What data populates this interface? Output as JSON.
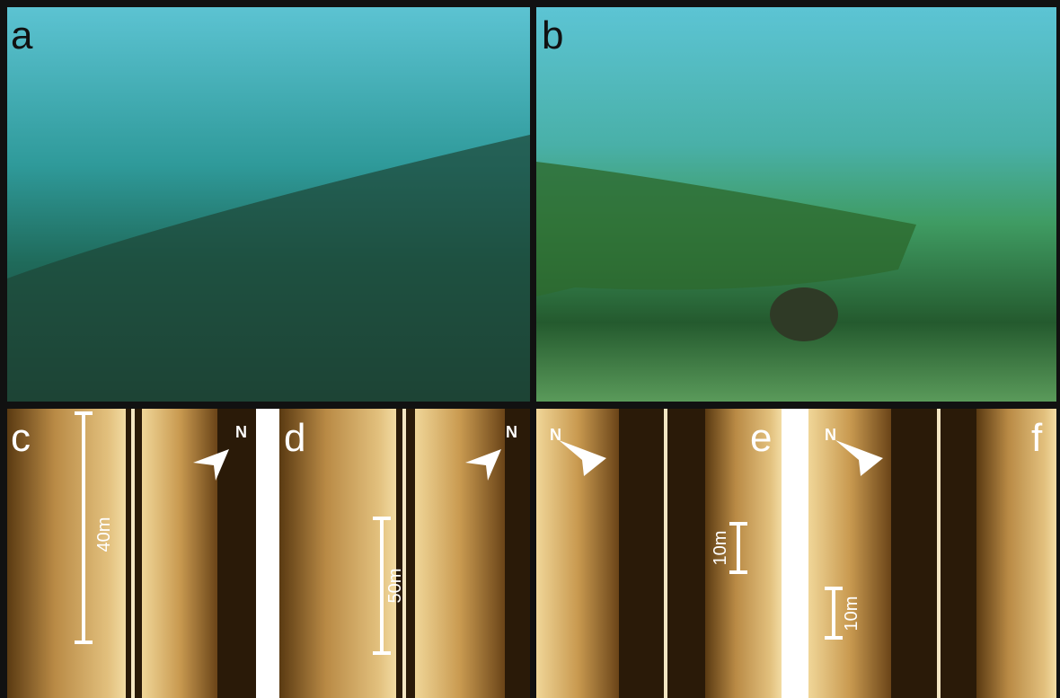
{
  "panels": [
    {
      "label": "a"
    },
    {
      "label": "b"
    },
    {
      "label": "c",
      "scale_bar": "40m",
      "compass": "N"
    },
    {
      "label": "d",
      "scale_bar": "50m",
      "compass": "N"
    },
    {
      "label": "e",
      "scale_bar": "10m",
      "compass": "N"
    },
    {
      "label": "f",
      "scale_bar": "10m",
      "compass": "N"
    }
  ]
}
